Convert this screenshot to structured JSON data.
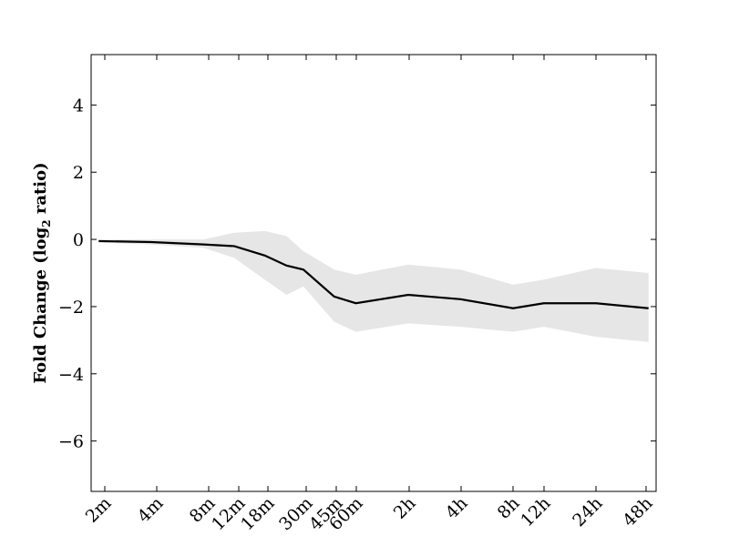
{
  "chart_data": {
    "type": "line",
    "title": "",
    "xlabel": "",
    "ylabel": "Fold Change (log",
    "ylabel_subscript": "2",
    "ylabel_suffix": " ratio)",
    "categories": [
      "2m",
      "4m",
      "8m",
      "12m",
      "18m",
      "30m",
      "45m",
      "60m",
      "2h",
      "4h",
      "8h",
      "12h",
      "24h",
      "48h"
    ],
    "ylim": [
      -7.5,
      5.5
    ],
    "yticks": [
      -6,
      -4,
      -2,
      0,
      2,
      4
    ],
    "ytick_labels": [
      "−6",
      "−4",
      "−2",
      "0",
      "2",
      "4"
    ],
    "series": [
      {
        "x": [
          2,
          4,
          8,
          12,
          18,
          24,
          30,
          45,
          60,
          120,
          240,
          480,
          720,
          1440,
          2880
        ],
        "values": [
          -0.05,
          -0.08,
          -0.15,
          -0.2,
          -0.48,
          -0.78,
          -0.9,
          -1.7,
          -1.9,
          -1.65,
          -1.78,
          -2.05,
          -1.9,
          -1.9,
          -2.05
        ],
        "lower": [
          -0.1,
          -0.15,
          -0.25,
          -0.55,
          -1.2,
          -1.65,
          -1.4,
          -2.45,
          -2.75,
          -2.5,
          -2.6,
          -2.75,
          -2.6,
          -2.9,
          -3.05
        ],
        "upper": [
          0.0,
          0.0,
          0.0,
          0.2,
          0.25,
          0.1,
          -0.35,
          -0.9,
          -1.05,
          -0.75,
          -0.9,
          -1.35,
          -1.2,
          -0.85,
          -1.0
        ],
        "color": "#000000",
        "band_color": "#e6e6e6"
      }
    ],
    "grid": false,
    "legend": "none"
  }
}
